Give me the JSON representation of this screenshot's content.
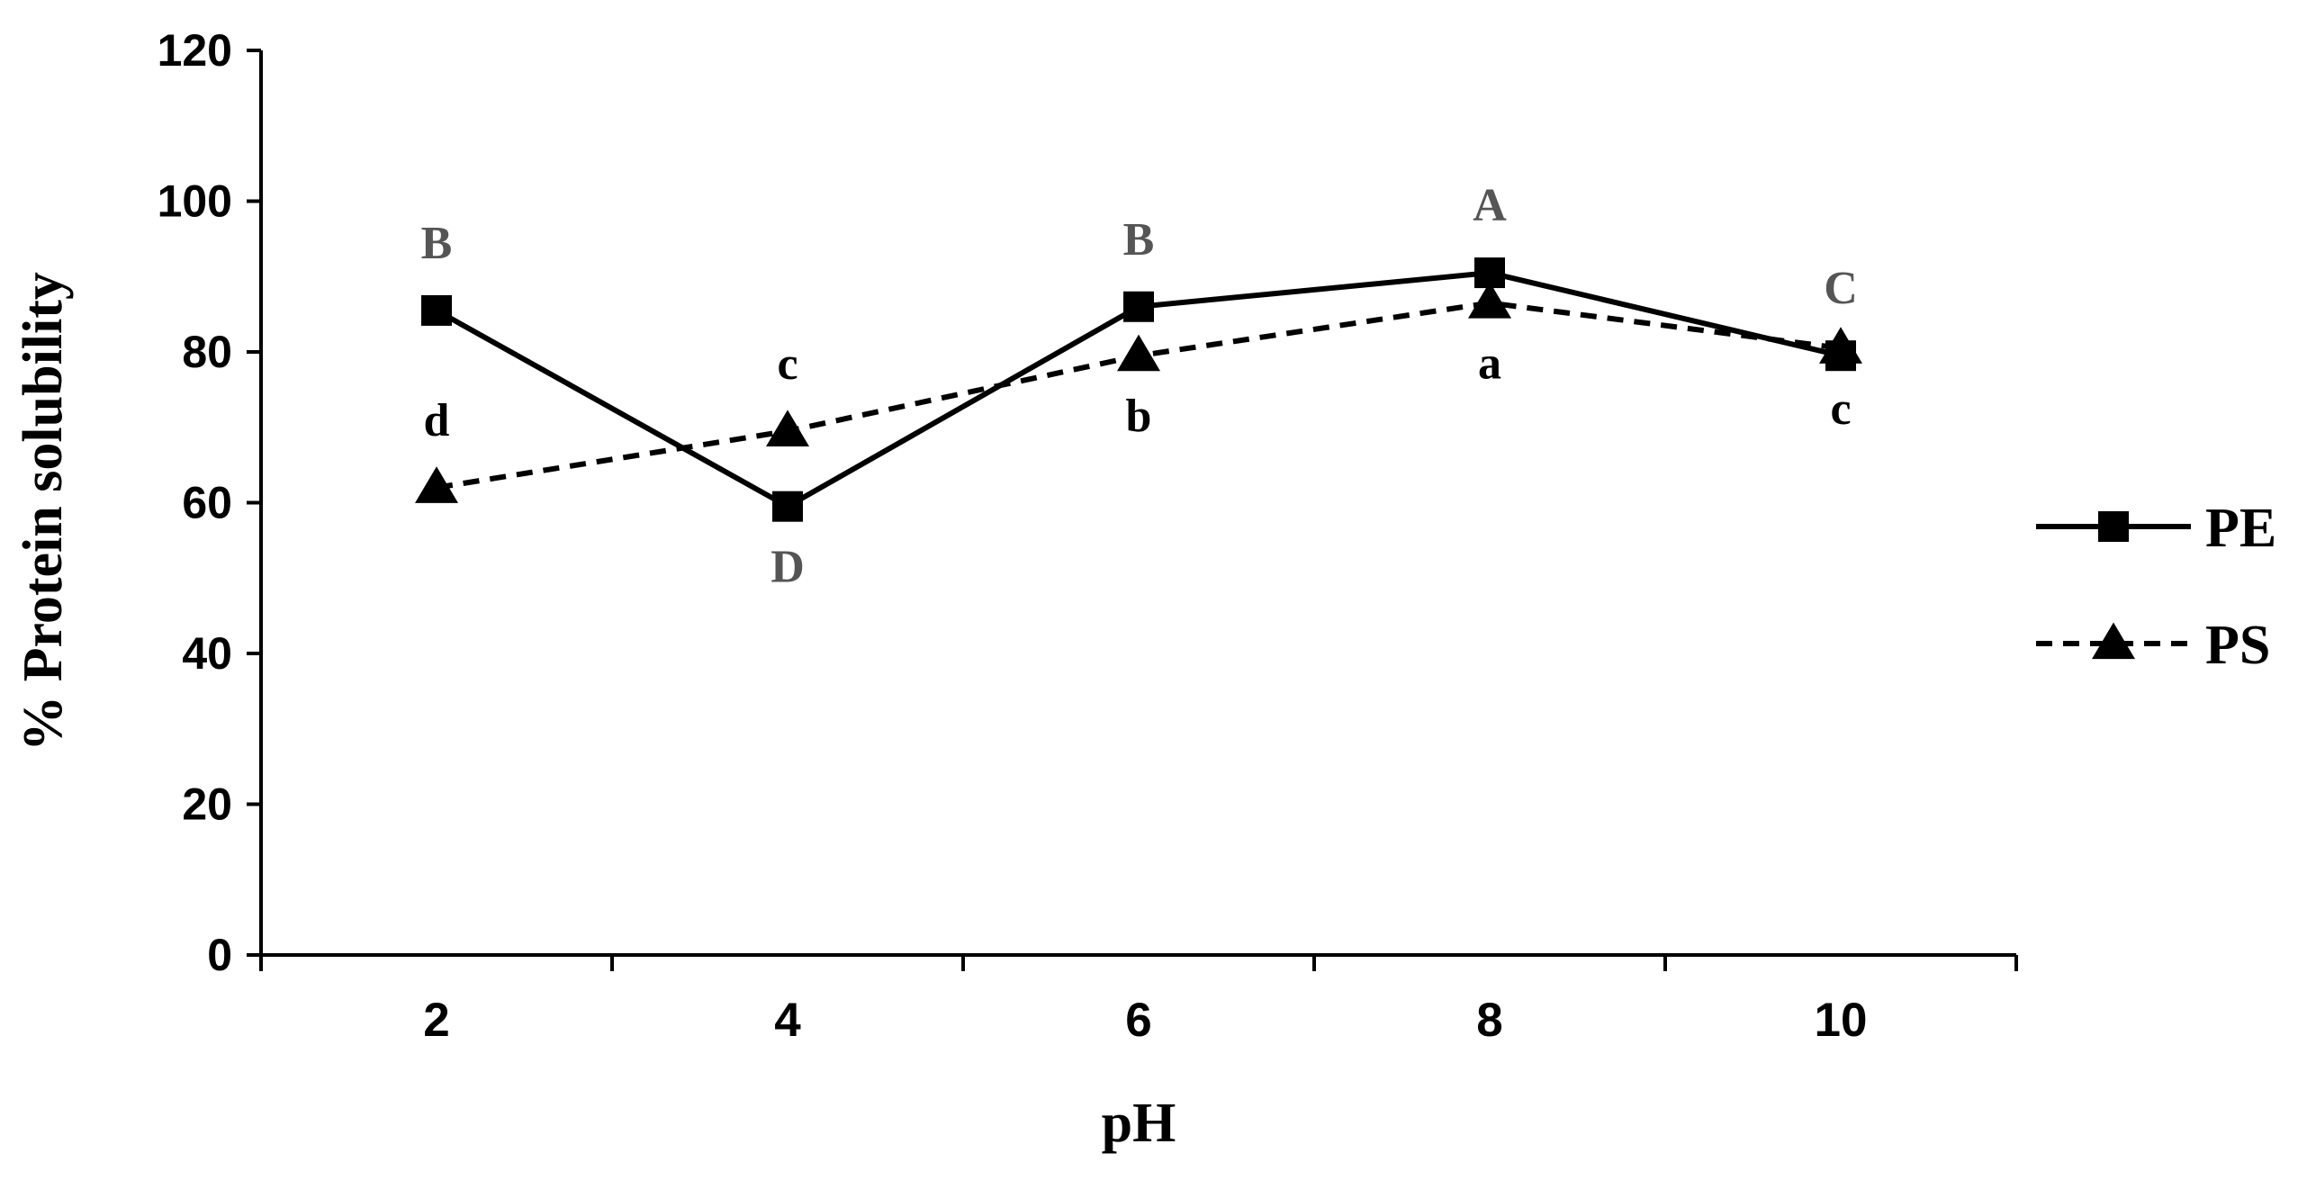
{
  "chart_data": {
    "type": "line",
    "title": "",
    "xlabel": "pH",
    "ylabel": "% Protein solubility",
    "xlim": [
      1,
      11
    ],
    "ylim": [
      0,
      120
    ],
    "x_ticks": [
      2,
      4,
      6,
      8,
      10
    ],
    "x_tick_labels": [
      "2",
      "4",
      "6",
      "8",
      "10"
    ],
    "y_ticks": [
      0,
      20,
      40,
      60,
      80,
      100,
      120
    ],
    "y_tick_labels": [
      "0",
      "20",
      "40",
      "60",
      "80",
      "100",
      "120"
    ],
    "grid": false,
    "legend_position": "right",
    "x": [
      2,
      4,
      6,
      8,
      10
    ],
    "series": [
      {
        "name": "PE",
        "values": [
          85.5,
          59.5,
          86,
          90.5,
          79.5
        ],
        "marker": "square",
        "line_style": "solid",
        "color": "#000000",
        "letters": [
          "B",
          "D",
          "B",
          "A",
          "C"
        ],
        "letter_placement": [
          "above",
          "below",
          "above",
          "above",
          "above"
        ]
      },
      {
        "name": "PS",
        "values": [
          62,
          69.5,
          79.5,
          86.5,
          80.5
        ],
        "marker": "triangle",
        "line_style": "dashed",
        "color": "#000000",
        "letters": [
          "d",
          "c",
          "b",
          "a",
          "c"
        ],
        "letter_placement": [
          "above",
          "above",
          "below",
          "below",
          "below"
        ]
      }
    ]
  }
}
